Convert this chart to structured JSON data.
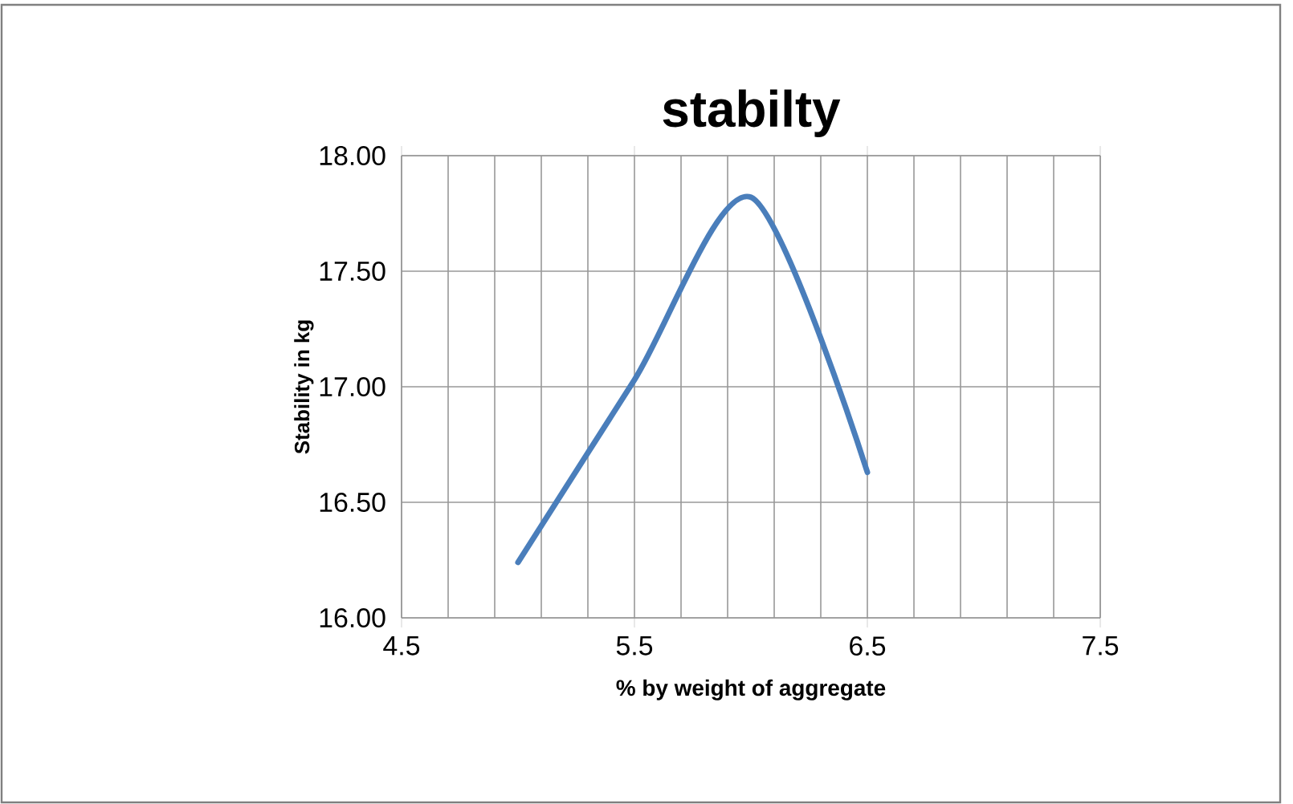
{
  "chart_data": {
    "type": "line",
    "title": "stabilty",
    "xlabel": "% by weight of aggregate",
    "ylabel": "Stability in kg",
    "x": [
      5,
      5.5,
      6,
      6.5
    ],
    "series": [
      {
        "color": "#4a7ebb",
        "values": [
          16.24,
          17.03,
          17.82,
          16.63
        ]
      }
    ],
    "xlim": [
      4.5,
      7.5
    ],
    "xticks": [
      4.5,
      {
        "value": 4.7,
        "label": null
      },
      {
        "value": 4.9,
        "label": null
      },
      {
        "value": 5.1,
        "label": null
      },
      {
        "value": 5.3,
        "label": null
      },
      5.5,
      {
        "value": 5.7,
        "label": null
      },
      {
        "value": 5.9,
        "label": null
      },
      {
        "value": 6.1,
        "label": null
      },
      {
        "value": 6.3,
        "label": null
      },
      6.5,
      {
        "value": 6.7,
        "label": null
      },
      {
        "value": 6.9,
        "label": null
      },
      {
        "value": 7.1,
        "label": null
      },
      {
        "value": 7.3,
        "label": null
      },
      7.5
    ],
    "ylim": [
      16,
      18
    ],
    "yticks": [
      {
        "value": 16,
        "label": "16.00"
      },
      {
        "value": 16.5,
        "label": "16.50"
      },
      {
        "value": 17,
        "label": "17.00"
      },
      {
        "value": 17.5,
        "label": "17.50"
      },
      {
        "value": 18,
        "label": "18.00"
      }
    ],
    "grid": true
  }
}
